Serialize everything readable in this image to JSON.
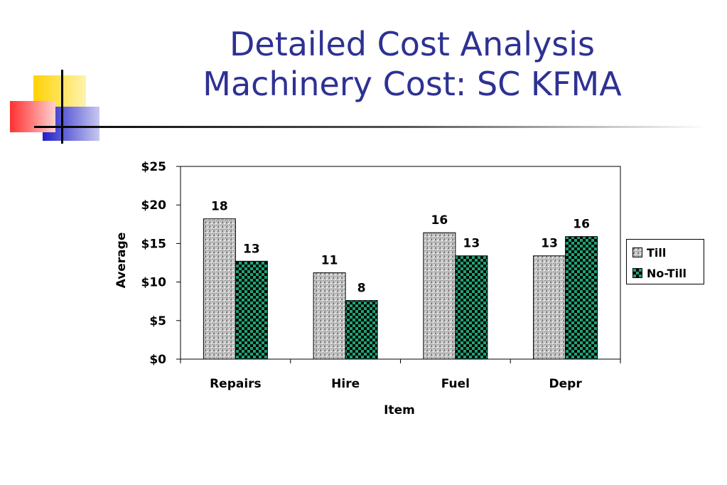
{
  "slide": {
    "title_line1": "Detailed Cost Analysis",
    "title_line2": "Machinery Cost: SC KFMA"
  },
  "colors": {
    "title": "#2e3192",
    "till_fill": "#bdbdbd",
    "notill_fill": "#1f9e6f",
    "notill_dark": "#000000"
  },
  "chart_data": {
    "type": "bar",
    "title": "",
    "xlabel": "Item",
    "ylabel": "Average",
    "categories": [
      "Repairs",
      "Hire",
      "Fuel",
      "Depr"
    ],
    "series": [
      {
        "name": "Till",
        "values": [
          18.2,
          11.2,
          16.4,
          13.4
        ],
        "labels": [
          "18",
          "11",
          "16",
          "13"
        ]
      },
      {
        "name": "No-Till",
        "values": [
          12.7,
          7.6,
          13.4,
          15.9
        ],
        "labels": [
          "13",
          "8",
          "13",
          "16"
        ]
      }
    ],
    "ylim": [
      0,
      25
    ],
    "yticks": [
      0,
      5,
      10,
      15,
      20,
      25
    ],
    "ytick_labels": [
      "$0",
      "$5",
      "$10",
      "$15",
      "$20",
      "$25"
    ],
    "grid": false,
    "legend_position": "right"
  }
}
